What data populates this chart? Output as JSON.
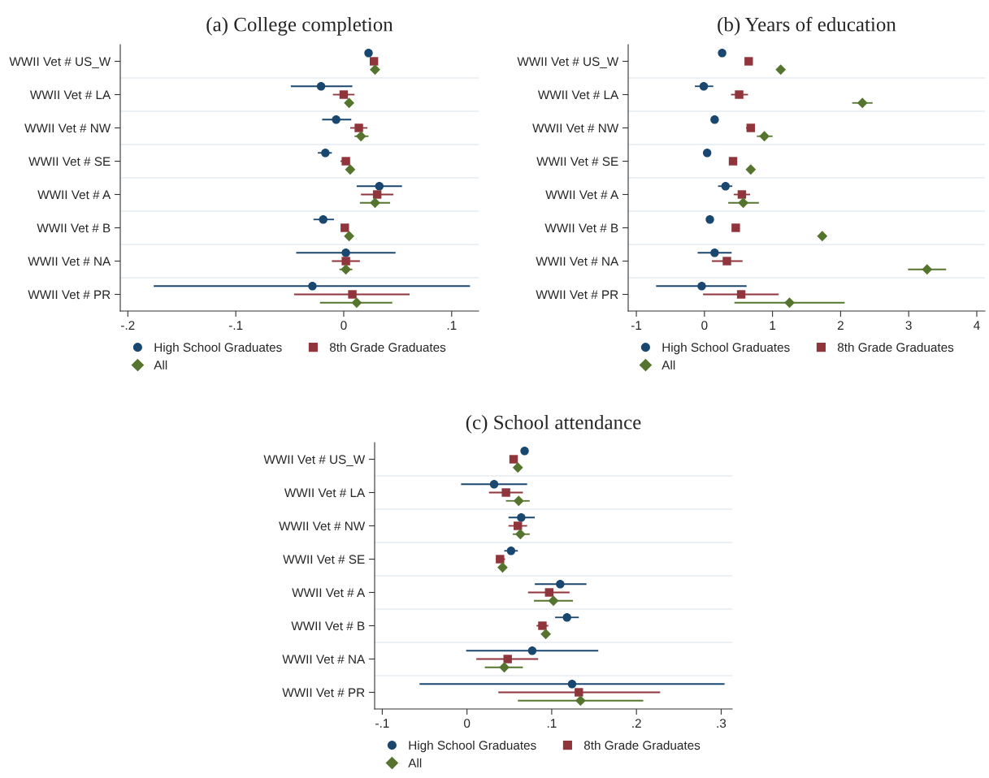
{
  "chart_data": [
    {
      "type": "scatter",
      "title": "(a) College completion",
      "categories": [
        "WWII Vet # US_W",
        "WWII Vet # LA",
        "WWII Vet # NW",
        "WWII Vet # SE",
        "WWII Vet # A",
        "WWII Vet # B",
        "WWII Vet # NA",
        "WWII Vet # PR"
      ],
      "orientation": "horizontal",
      "xlim": [
        -0.207,
        0.125
      ],
      "xticks": [
        {
          "value": -0.2,
          "label": "-.2"
        },
        {
          "value": -0.1,
          "label": "-.1"
        },
        0,
        {
          "value": 0.1,
          "label": ".1"
        }
      ],
      "grid": "y",
      "legend": "bottom",
      "series": [
        {
          "name": "High School Graduates",
          "color": "#1a476f",
          "marker": "circle",
          "values": [
            0.023,
            -0.021,
            -0.007,
            -0.017,
            0.033,
            -0.019,
            0.002,
            -0.029
          ],
          "errors": [
            null,
            [
              -0.049,
              0.008
            ],
            [
              -0.02,
              0.007
            ],
            [
              -0.024,
              -0.011
            ],
            [
              0.012,
              0.054
            ],
            [
              -0.028,
              -0.009
            ],
            [
              -0.044,
              0.048
            ],
            [
              -0.176,
              0.117
            ]
          ]
        },
        {
          "name": "8th Grade Graduates",
          "color": "#90353b",
          "marker": "square",
          "values": [
            0.028,
            0.0,
            0.014,
            0.002,
            0.031,
            0.001,
            0.002,
            0.008
          ],
          "errors": [
            null,
            [
              -0.01,
              0.01
            ],
            [
              0.006,
              0.022
            ],
            [
              -0.003,
              0.005
            ],
            [
              0.016,
              0.046
            ],
            null,
            [
              -0.011,
              0.015
            ],
            [
              -0.046,
              0.061
            ]
          ]
        },
        {
          "name": "All",
          "color": "#55752f",
          "marker": "diamond",
          "values": [
            0.029,
            0.005,
            0.016,
            0.006,
            0.029,
            0.005,
            0.002,
            0.012
          ],
          "errors": [
            null,
            null,
            [
              0.01,
              0.023
            ],
            null,
            [
              0.015,
              0.043
            ],
            null,
            [
              -0.004,
              0.008
            ],
            [
              -0.022,
              0.045
            ]
          ]
        }
      ]
    },
    {
      "type": "scatter",
      "title": "(b) Years of education",
      "categories": [
        "WWII Vet # US_W",
        "WWII Vet # LA",
        "WWII Vet # NW",
        "WWII Vet # SE",
        "WWII Vet # A",
        "WWII Vet # B",
        "WWII Vet # NA",
        "WWII Vet # PR"
      ],
      "orientation": "horizontal",
      "xlim": [
        -1.12,
        4.12
      ],
      "xticks": [
        -1,
        0,
        1,
        2,
        3,
        4
      ],
      "grid": "y",
      "legend": "bottom",
      "series": [
        {
          "name": "High School Graduates",
          "color": "#1a476f",
          "marker": "circle",
          "values": [
            0.26,
            -0.01,
            0.15,
            0.04,
            0.31,
            0.08,
            0.15,
            -0.04
          ],
          "errors": [
            null,
            [
              -0.14,
              0.13
            ],
            [
              0.1,
              0.2
            ],
            null,
            [
              0.2,
              0.41
            ],
            null,
            [
              -0.1,
              0.4
            ],
            [
              -0.71,
              0.62
            ]
          ]
        },
        {
          "name": "8th Grade Graduates",
          "color": "#90353b",
          "marker": "square",
          "values": [
            0.65,
            0.51,
            0.68,
            0.42,
            0.55,
            0.46,
            0.33,
            0.54
          ],
          "errors": [
            null,
            [
              0.39,
              0.64
            ],
            [
              0.61,
              0.74
            ],
            null,
            [
              0.43,
              0.67
            ],
            null,
            [
              0.11,
              0.56
            ],
            [
              -0.02,
              1.09
            ]
          ]
        },
        {
          "name": "All",
          "color": "#55752f",
          "marker": "diamond",
          "values": [
            1.12,
            2.32,
            0.88,
            0.68,
            0.57,
            1.73,
            3.27,
            1.25
          ],
          "errors": [
            null,
            [
              2.17,
              2.47
            ],
            [
              0.77,
              1.0
            ],
            null,
            [
              0.35,
              0.8
            ],
            null,
            [
              2.99,
              3.55
            ],
            [
              0.44,
              2.06
            ]
          ]
        }
      ]
    },
    {
      "type": "scatter",
      "title": "(c) School attendance",
      "categories": [
        "WWII Vet # US_W",
        "WWII Vet # LA",
        "WWII Vet # NW",
        "WWII Vet # SE",
        "WWII Vet # A",
        "WWII Vet # B",
        "WWII Vet # NA",
        "WWII Vet # PR"
      ],
      "orientation": "horizontal",
      "xlim": [
        -0.109,
        0.313
      ],
      "xticks": [
        {
          "value": -0.1,
          "label": "-.1"
        },
        0,
        {
          "value": 0.1,
          "label": ".1"
        },
        {
          "value": 0.2,
          "label": ".2"
        },
        {
          "value": 0.3,
          "label": ".3"
        }
      ],
      "grid": "y",
      "legend": "bottom",
      "series": [
        {
          "name": "High School Graduates",
          "color": "#1a476f",
          "marker": "circle",
          "values": [
            0.068,
            0.032,
            0.064,
            0.052,
            0.11,
            0.118,
            0.077,
            0.124
          ],
          "errors": [
            null,
            [
              -0.007,
              0.071
            ],
            [
              0.049,
              0.08
            ],
            [
              0.044,
              0.06
            ],
            [
              0.08,
              0.141
            ],
            [
              0.104,
              0.132
            ],
            [
              -0.001,
              0.155
            ],
            [
              -0.056,
              0.304
            ]
          ]
        },
        {
          "name": "8th Grade Graduates",
          "color": "#90353b",
          "marker": "square",
          "values": [
            0.055,
            0.046,
            0.06,
            0.039,
            0.097,
            0.089,
            0.048,
            0.132
          ],
          "errors": [
            null,
            [
              0.026,
              0.066
            ],
            [
              0.049,
              0.071
            ],
            [
              0.034,
              0.045
            ],
            [
              0.072,
              0.121
            ],
            [
              0.082,
              0.096
            ],
            [
              0.011,
              0.084
            ],
            [
              0.037,
              0.228
            ]
          ]
        },
        {
          "name": "All",
          "color": "#55752f",
          "marker": "diamond",
          "values": [
            0.06,
            0.061,
            0.063,
            0.042,
            0.102,
            0.093,
            0.044,
            0.134
          ],
          "errors": [
            null,
            [
              0.046,
              0.074
            ],
            [
              0.054,
              0.074
            ],
            null,
            [
              0.079,
              0.125
            ],
            null,
            [
              0.021,
              0.066
            ],
            [
              0.06,
              0.208
            ]
          ]
        }
      ]
    }
  ]
}
